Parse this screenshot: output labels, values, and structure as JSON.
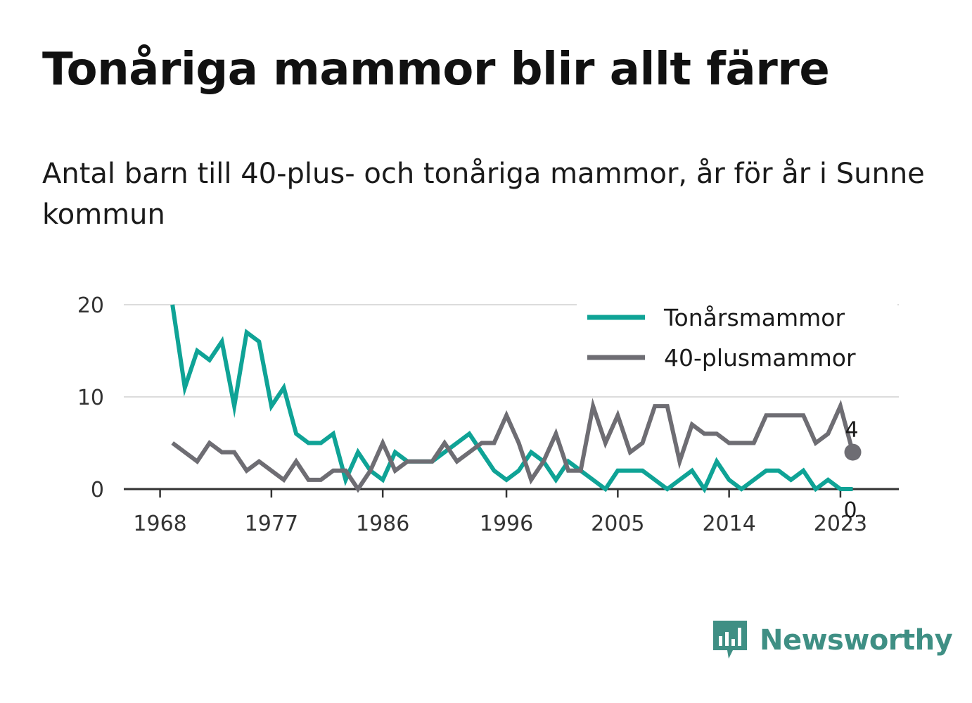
{
  "header": {
    "title": "Tonåriga mammor blir allt färre",
    "subtitle": "Antal barn till 40-plus- och tonåriga mammor, år för år i Sunne kommun"
  },
  "brand": {
    "name": "Newsworthy",
    "icon": "newsworthy-logo-icon",
    "color": "#3f8f84"
  },
  "chart_data": {
    "type": "line",
    "title": "Tonåriga mammor blir allt färre",
    "subtitle": "Antal barn till 40-plus- och tonåriga mammor, år för år i Sunne kommun",
    "xlabel": "",
    "ylabel": "",
    "xlim": [
      1967,
      2027
    ],
    "ylim": [
      0,
      20
    ],
    "x_ticks": [
      1968,
      1977,
      1986,
      1996,
      2005,
      2014,
      2023
    ],
    "y_ticks": [
      0,
      10,
      20
    ],
    "grid": "horizontal",
    "legend_position": "top-right",
    "x": [
      1969,
      1970,
      1971,
      1972,
      1973,
      1974,
      1975,
      1976,
      1977,
      1978,
      1979,
      1980,
      1981,
      1982,
      1983,
      1984,
      1985,
      1986,
      1987,
      1988,
      1989,
      1990,
      1991,
      1992,
      1993,
      1994,
      1995,
      1996,
      1997,
      1998,
      1999,
      2000,
      2001,
      2002,
      2003,
      2004,
      2005,
      2006,
      2007,
      2008,
      2009,
      2010,
      2011,
      2012,
      2013,
      2014,
      2015,
      2016,
      2017,
      2018,
      2019,
      2020,
      2021,
      2022,
      2023,
      2024
    ],
    "series": [
      {
        "name": "Tonårsmammor",
        "color": "#0fa396",
        "values": [
          20,
          11,
          15,
          14,
          16,
          9,
          17,
          16,
          9,
          11,
          6,
          5,
          5,
          6,
          1,
          4,
          2,
          1,
          4,
          3,
          3,
          3,
          4,
          5,
          6,
          4,
          2,
          1,
          2,
          4,
          3,
          1,
          3,
          2,
          1,
          0,
          2,
          2,
          2,
          1,
          0,
          1,
          2,
          0,
          3,
          1,
          0,
          1,
          2,
          2,
          1,
          2,
          0,
          1,
          0,
          0
        ],
        "end_label": "0"
      },
      {
        "name": "40-plusmammor",
        "color": "#6e6d73",
        "values": [
          5,
          4,
          3,
          5,
          4,
          4,
          2,
          3,
          2,
          1,
          3,
          1,
          1,
          2,
          2,
          0,
          2,
          5,
          2,
          3,
          3,
          3,
          5,
          3,
          4,
          5,
          5,
          8,
          5,
          1,
          3,
          6,
          2,
          2,
          9,
          5,
          8,
          4,
          5,
          9,
          9,
          3,
          7,
          6,
          6,
          5,
          5,
          5,
          8,
          8,
          8,
          8,
          5,
          6,
          9,
          4
        ],
        "end_label": "4"
      }
    ]
  }
}
